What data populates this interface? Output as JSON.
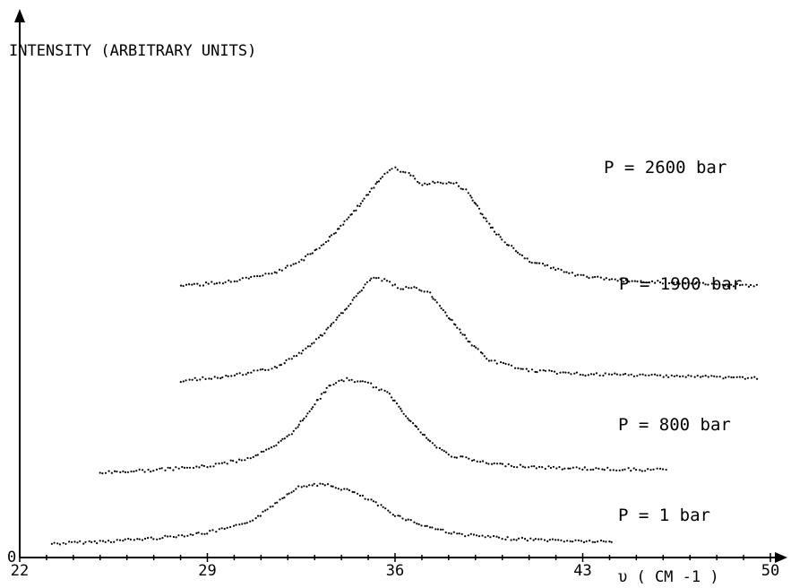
{
  "chart_data": {
    "type": "line",
    "title": "",
    "ylabel": "INTENSITY (ARBITRARY UNITS)",
    "xlabel": "υ ( CM -1 )",
    "xlim": [
      22,
      50
    ],
    "ylim": [
      0,
      10
    ],
    "xticks": [
      22,
      29,
      36,
      43,
      50
    ],
    "yticks": [
      0
    ],
    "grid": false,
    "legend": "none",
    "marker": "dotted",
    "colors": {
      "data": "#000000",
      "axes": "#000000",
      "background": "#ffffff"
    },
    "series": [
      {
        "name": "P = 1 bar",
        "x": [
          23.2,
          25,
          27,
          29,
          30.3,
          31,
          31.7,
          32.3,
          33,
          33.5,
          34.3,
          35.2,
          36,
          37,
          38.3,
          40,
          42,
          44.2
        ],
        "y": [
          0.12,
          0.2,
          0.33,
          0.55,
          0.85,
          1.25,
          1.85,
          2.3,
          2.45,
          2.4,
          2.2,
          1.75,
          1.25,
          0.85,
          0.5,
          0.33,
          0.25,
          0.18
        ]
      },
      {
        "name": "P = 800 bar",
        "x": [
          25,
          27,
          29,
          30.5,
          31.5,
          32.3,
          33,
          33.6,
          34.2,
          35,
          35.8,
          36.6,
          37.3,
          38,
          39.5,
          41.5,
          43.5,
          46.2
        ],
        "y": [
          2.9,
          3.0,
          3.15,
          3.45,
          3.9,
          4.6,
          5.6,
          6.35,
          6.55,
          6.4,
          5.95,
          4.9,
          4.1,
          3.6,
          3.25,
          3.1,
          3.05,
          3.0
        ]
      },
      {
        "name": "P = 1900 bar",
        "x": [
          28,
          30,
          31.5,
          32.5,
          33.3,
          34,
          34.6,
          35.2,
          35.7,
          36.2,
          36.8,
          37.3,
          38,
          38.8,
          39.5,
          41,
          43,
          46,
          49.6
        ],
        "y": [
          6.5,
          6.7,
          7.0,
          7.6,
          8.3,
          9.1,
          9.9,
          10.55,
          10.4,
          10.1,
          10.15,
          9.9,
          9.0,
          8.0,
          7.3,
          6.9,
          6.75,
          6.7,
          6.6
        ]
      },
      {
        "name": "P = 2600 bar",
        "x": [
          28,
          30,
          31.5,
          32.5,
          33.5,
          34.2,
          35,
          35.6,
          36,
          36.5,
          37,
          37.6,
          38.3,
          38.8,
          39.3,
          40,
          41,
          42.5,
          44,
          46,
          49.6
        ],
        "y": [
          10.2,
          10.4,
          10.7,
          11.2,
          12.0,
          12.8,
          13.8,
          14.6,
          14.8,
          14.6,
          14.2,
          14.3,
          14.2,
          13.8,
          12.9,
          12.0,
          11.2,
          10.7,
          10.45,
          10.35,
          10.2
        ]
      }
    ],
    "annotations": [
      {
        "text": "P = 2600 bar",
        "series": 3
      },
      {
        "text": "P = 1900 bar",
        "series": 2
      },
      {
        "text": "P = 800 bar",
        "series": 1
      },
      {
        "text": "P = 1 bar",
        "series": 0
      }
    ]
  }
}
